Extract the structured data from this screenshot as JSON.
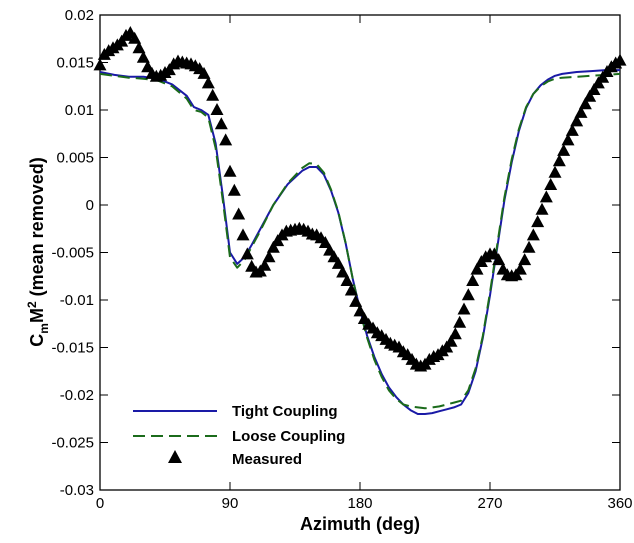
{
  "chart_data": {
    "type": "line",
    "title": "",
    "xlabel": "Azimuth (deg)",
    "ylabel_base": "C",
    "ylabel_sub": "m",
    "ylabel_mid": "M",
    "ylabel_sup": "2",
    "ylabel_rest": " (mean removed)",
    "xlim": [
      0,
      360
    ],
    "ylim": [
      -0.03,
      0.02
    ],
    "xticks": [
      0,
      90,
      180,
      270,
      360
    ],
    "xtick_labels": [
      "0",
      "90",
      "180",
      "270",
      "360"
    ],
    "yticks": [
      -0.03,
      -0.025,
      -0.02,
      -0.015,
      -0.01,
      -0.005,
      0,
      0.005,
      0.01,
      0.015,
      0.02
    ],
    "ytick_labels": [
      "-0.03",
      "-0.025",
      "-0.02",
      "-0.015",
      "-0.01",
      "-0.005",
      "0",
      "0.005",
      "0.01",
      "0.015",
      "0.02"
    ],
    "grid": false,
    "legend_position": "bottom-left",
    "series": [
      {
        "name": "Tight Coupling",
        "style": "solid",
        "color": "#1a1aa6",
        "x": [
          0,
          10,
          20,
          30,
          40,
          50,
          60,
          65,
          70,
          75,
          80,
          85,
          90,
          95,
          100,
          105,
          110,
          120,
          130,
          140,
          145,
          150,
          155,
          160,
          165,
          170,
          175,
          180,
          185,
          190,
          195,
          200,
          205,
          210,
          215,
          220,
          225,
          230,
          235,
          240,
          245,
          250,
          255,
          260,
          265,
          270,
          275,
          280,
          285,
          290,
          295,
          300,
          305,
          310,
          315,
          320,
          330,
          340,
          350,
          360
        ],
        "y": [
          0.014,
          0.0137,
          0.0135,
          0.0135,
          0.0133,
          0.0127,
          0.0115,
          0.0103,
          0.01,
          0.0095,
          0.0065,
          0.001,
          -0.005,
          -0.0062,
          -0.0055,
          -0.0042,
          -0.0028,
          0.0,
          0.0022,
          0.0036,
          0.004,
          0.004,
          0.0032,
          0.0015,
          -0.0008,
          -0.004,
          -0.0078,
          -0.011,
          -0.0138,
          -0.016,
          -0.0178,
          -0.0192,
          -0.0202,
          -0.021,
          -0.0216,
          -0.022,
          -0.022,
          -0.0219,
          -0.0217,
          -0.0215,
          -0.0213,
          -0.021,
          -0.0198,
          -0.0175,
          -0.014,
          -0.0095,
          -0.0045,
          0.0005,
          0.0045,
          0.0078,
          0.0102,
          0.0117,
          0.0126,
          0.0132,
          0.0136,
          0.0138,
          0.014,
          0.0141,
          0.0142,
          0.0142
        ]
      },
      {
        "name": "Loose Coupling",
        "style": "dashed",
        "color": "#1b6b1b",
        "x": [
          0,
          10,
          20,
          30,
          40,
          50,
          60,
          65,
          70,
          75,
          80,
          85,
          90,
          95,
          100,
          105,
          110,
          120,
          130,
          140,
          145,
          150,
          155,
          160,
          165,
          170,
          175,
          180,
          185,
          190,
          195,
          200,
          205,
          210,
          215,
          220,
          225,
          230,
          235,
          240,
          245,
          250,
          255,
          260,
          265,
          270,
          275,
          280,
          285,
          290,
          295,
          300,
          305,
          310,
          315,
          320,
          330,
          340,
          350,
          360
        ],
        "y": [
          0.0138,
          0.0136,
          0.0134,
          0.0133,
          0.0131,
          0.0125,
          0.0112,
          0.01,
          0.0098,
          0.0092,
          0.006,
          0.0005,
          -0.0055,
          -0.0066,
          -0.0058,
          -0.0044,
          -0.003,
          0.0,
          0.0023,
          0.0039,
          0.0044,
          0.0043,
          0.0034,
          0.0016,
          -0.0007,
          -0.004,
          -0.0078,
          -0.0112,
          -0.014,
          -0.0163,
          -0.0181,
          -0.0195,
          -0.0204,
          -0.021,
          -0.0212,
          -0.0213,
          -0.0214,
          -0.0213,
          -0.0212,
          -0.021,
          -0.0208,
          -0.0206,
          -0.0195,
          -0.0172,
          -0.0138,
          -0.0092,
          -0.0042,
          0.0008,
          0.0048,
          0.008,
          0.0103,
          0.0117,
          0.0125,
          0.013,
          0.0133,
          0.0134,
          0.0135,
          0.0136,
          0.0137,
          0.0138
        ]
      },
      {
        "name": "Measured",
        "style": "markers",
        "marker": "triangle",
        "color": "#000000",
        "x": [
          0,
          3,
          6,
          9,
          12,
          15,
          18,
          21,
          24,
          27,
          30,
          33,
          36,
          39,
          42,
          45,
          48,
          51,
          54,
          57,
          60,
          63,
          66,
          69,
          72,
          75,
          78,
          81,
          84,
          87,
          90,
          93,
          96,
          99,
          102,
          105,
          108,
          111,
          114,
          117,
          120,
          123,
          126,
          129,
          132,
          135,
          138,
          141,
          144,
          147,
          150,
          153,
          156,
          159,
          162,
          165,
          168,
          171,
          174,
          177,
          180,
          183,
          186,
          189,
          192,
          195,
          198,
          201,
          204,
          207,
          210,
          213,
          216,
          219,
          222,
          225,
          228,
          231,
          234,
          237,
          240,
          243,
          246,
          249,
          252,
          255,
          258,
          261,
          264,
          267,
          270,
          273,
          276,
          279,
          282,
          285,
          288,
          291,
          294,
          297,
          300,
          303,
          306,
          309,
          312,
          315,
          318,
          321,
          324,
          327,
          330,
          333,
          336,
          339,
          342,
          345,
          348,
          351,
          354,
          357,
          360
        ],
        "y": [
          0.0147,
          0.0158,
          0.0162,
          0.0165,
          0.0168,
          0.0172,
          0.0178,
          0.0181,
          0.0175,
          0.0165,
          0.0155,
          0.0145,
          0.0138,
          0.0135,
          0.0136,
          0.0139,
          0.0142,
          0.0148,
          0.0151,
          0.015,
          0.0149,
          0.0148,
          0.0146,
          0.0143,
          0.0138,
          0.0128,
          0.0115,
          0.01,
          0.0085,
          0.0068,
          0.0035,
          0.0015,
          -0.001,
          -0.0032,
          -0.0052,
          -0.0065,
          -0.0071,
          -0.007,
          -0.0064,
          -0.0055,
          -0.0045,
          -0.0038,
          -0.0032,
          -0.0028,
          -0.0027,
          -0.0026,
          -0.0025,
          -0.0026,
          -0.0028,
          -0.0031,
          -0.0032,
          -0.0035,
          -0.004,
          -0.0048,
          -0.0055,
          -0.0062,
          -0.0071,
          -0.008,
          -0.009,
          -0.0102,
          -0.0112,
          -0.012,
          -0.0126,
          -0.013,
          -0.0135,
          -0.0138,
          -0.0142,
          -0.0146,
          -0.0148,
          -0.015,
          -0.0155,
          -0.0158,
          -0.0163,
          -0.0168,
          -0.017,
          -0.0168,
          -0.0163,
          -0.016,
          -0.0158,
          -0.0154,
          -0.015,
          -0.0144,
          -0.0136,
          -0.0124,
          -0.011,
          -0.0095,
          -0.008,
          -0.0068,
          -0.006,
          -0.0055,
          -0.0052,
          -0.0052,
          -0.0058,
          -0.0068,
          -0.0074,
          -0.0075,
          -0.0074,
          -0.0068,
          -0.0058,
          -0.0045,
          -0.0032,
          -0.0018,
          -0.0005,
          0.0008,
          0.0021,
          0.0034,
          0.0046,
          0.0057,
          0.0068,
          0.0078,
          0.0088,
          0.0097,
          0.0106,
          0.0114,
          0.0121,
          0.0128,
          0.0134,
          0.014,
          0.0145,
          0.0149,
          0.0152
        ]
      }
    ]
  }
}
